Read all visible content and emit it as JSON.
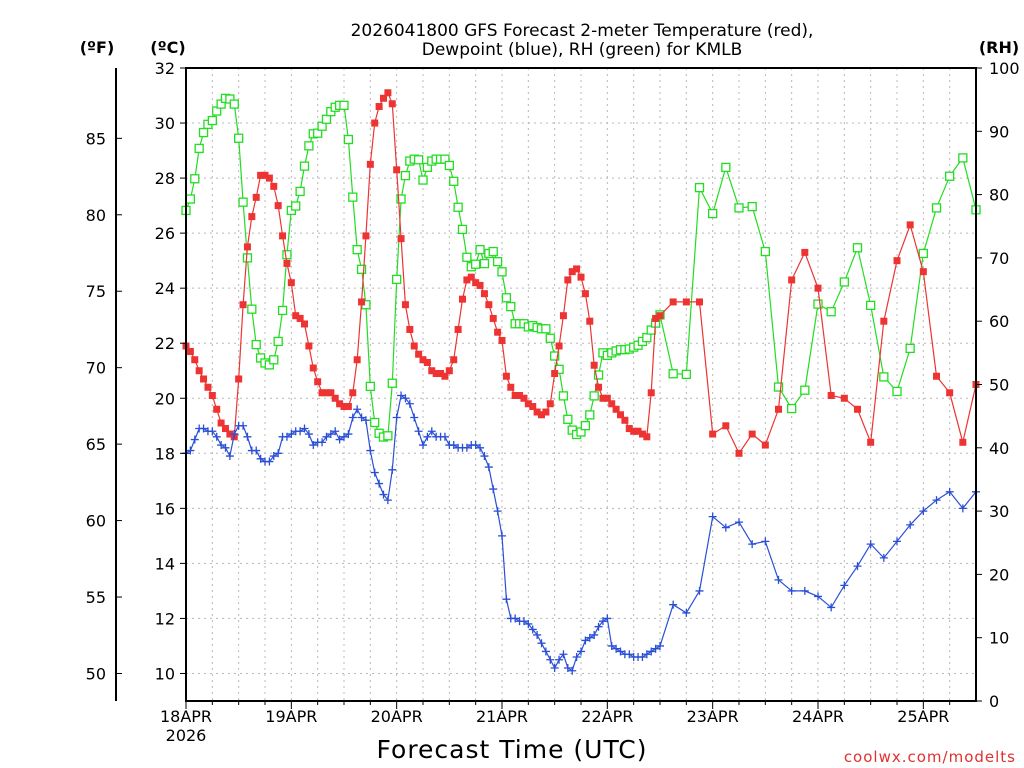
{
  "chart_data": {
    "type": "line",
    "title_line1": "2026041800 GFS Forecast 2-meter Temperature (red),",
    "title_line2": "Dewpoint (blue), RH (green) for KMLB",
    "left_outer_label": "(ºF)",
    "left_inner_label": "(ºC)",
    "right_label": "(RH)",
    "xlabel": "Forecast Time (UTC)",
    "credit": "coolwx.com/modelts",
    "x_unit": "hours from 2026041800",
    "xlim": [
      0,
      180
    ],
    "x_ticks": [
      {
        "hour": 0,
        "label": "18APR",
        "sublabel": "2026"
      },
      {
        "hour": 24,
        "label": "19APR",
        "sublabel": ""
      },
      {
        "hour": 48,
        "label": "20APR",
        "sublabel": ""
      },
      {
        "hour": 72,
        "label": "21APR",
        "sublabel": ""
      },
      {
        "hour": 96,
        "label": "22APR",
        "sublabel": ""
      },
      {
        "hour": 120,
        "label": "23APR",
        "sublabel": ""
      },
      {
        "hour": 144,
        "label": "24APR",
        "sublabel": ""
      },
      {
        "hour": 168,
        "label": "25APR",
        "sublabel": ""
      }
    ],
    "celsius_axis": {
      "ylim": [
        9,
        32
      ],
      "ticks": [
        10,
        12,
        14,
        16,
        18,
        20,
        22,
        24,
        26,
        28,
        30,
        32
      ]
    },
    "fahrenheit_axis": {
      "ticks": [
        50,
        55,
        60,
        65,
        70,
        75,
        80,
        85
      ]
    },
    "rh_axis": {
      "ylim": [
        0,
        100
      ],
      "ticks": [
        0,
        10,
        20,
        30,
        40,
        50,
        60,
        70,
        80,
        90,
        100
      ]
    },
    "series": [
      {
        "name": "Temperature",
        "unit": "°C",
        "axis": "celsius",
        "color": "#ee3333",
        "marker": "filled-square",
        "x": [
          0,
          1,
          2,
          3,
          4,
          5,
          6,
          7,
          8,
          9,
          10,
          11,
          12,
          13,
          14,
          15,
          16,
          17,
          18,
          19,
          20,
          21,
          22,
          23,
          24,
          25,
          26,
          27,
          28,
          29,
          30,
          31,
          32,
          33,
          34,
          35,
          36,
          37,
          38,
          39,
          40,
          41,
          42,
          43,
          44,
          45,
          46,
          47,
          48,
          49,
          50,
          51,
          52,
          53,
          54,
          55,
          56,
          57,
          58,
          59,
          60,
          61,
          62,
          63,
          64,
          65,
          66,
          67,
          68,
          69,
          70,
          71,
          72,
          73,
          74,
          75,
          76,
          77,
          78,
          79,
          80,
          81,
          82,
          83,
          84,
          85,
          86,
          87,
          88,
          89,
          90,
          91,
          92,
          93,
          94,
          95,
          96,
          97,
          98,
          99,
          100,
          101,
          102,
          103,
          104,
          105,
          106,
          107,
          108,
          111,
          114,
          117,
          120,
          123,
          126,
          129,
          132,
          135,
          138,
          141,
          144,
          147,
          150,
          153,
          156,
          159,
          162,
          165,
          168,
          171,
          174,
          177,
          180
        ],
        "y": [
          21.9,
          21.7,
          21.4,
          21.0,
          20.7,
          20.4,
          20.1,
          19.6,
          19.1,
          18.9,
          18.7,
          18.6,
          20.7,
          23.4,
          25.5,
          26.6,
          27.3,
          28.1,
          28.1,
          28.0,
          27.7,
          27.0,
          25.9,
          24.9,
          24.2,
          23.0,
          22.9,
          22.7,
          21.9,
          21.1,
          20.6,
          20.2,
          20.2,
          20.2,
          20.0,
          19.8,
          19.7,
          19.7,
          20.2,
          21.4,
          23.5,
          25.9,
          28.5,
          30.0,
          30.6,
          30.9,
          31.1,
          30.7,
          28.3,
          25.8,
          23.4,
          22.5,
          21.9,
          21.6,
          21.4,
          21.3,
          21.0,
          20.9,
          20.9,
          20.8,
          21.0,
          21.4,
          22.5,
          23.6,
          24.3,
          24.4,
          24.2,
          24.1,
          23.8,
          23.4,
          22.9,
          22.4,
          22.1,
          20.8,
          20.4,
          20.1,
          20.1,
          20.0,
          19.8,
          19.7,
          19.5,
          19.4,
          19.5,
          19.8,
          20.9,
          21.9,
          23.0,
          24.3,
          24.6,
          24.7,
          24.4,
          23.8,
          22.8,
          21.2,
          20.4,
          20.0,
          20.0,
          19.8,
          19.6,
          19.4,
          19.2,
          18.9,
          18.8,
          18.8,
          18.7,
          18.6,
          20.2,
          22.9,
          23.0,
          23.5,
          23.5,
          23.5,
          18.7,
          19.0,
          18.0,
          18.7,
          18.3,
          19.6,
          24.3,
          25.3,
          24.0,
          20.1,
          20.0,
          19.6,
          18.4,
          22.8,
          25.0,
          26.3,
          24.6,
          20.8,
          20.2,
          18.4,
          20.5
        ]
      },
      {
        "name": "Dewpoint",
        "unit": "°C",
        "axis": "celsius",
        "color": "#2a4fd6",
        "marker": "plus",
        "x": [
          0,
          1,
          2,
          3,
          4,
          5,
          6,
          7,
          8,
          9,
          10,
          11,
          12,
          13,
          14,
          15,
          16,
          17,
          18,
          19,
          20,
          21,
          22,
          23,
          24,
          25,
          26,
          27,
          28,
          29,
          30,
          31,
          32,
          33,
          34,
          35,
          36,
          37,
          38,
          39,
          40,
          41,
          42,
          43,
          44,
          45,
          46,
          47,
          48,
          49,
          50,
          51,
          52,
          53,
          54,
          55,
          56,
          57,
          58,
          59,
          60,
          61,
          62,
          63,
          64,
          65,
          66,
          67,
          68,
          69,
          70,
          71,
          72,
          73,
          74,
          75,
          76,
          77,
          78,
          79,
          80,
          81,
          82,
          83,
          84,
          85,
          86,
          87,
          88,
          89,
          90,
          91,
          92,
          93,
          94,
          95,
          96,
          97,
          98,
          99,
          100,
          101,
          102,
          103,
          104,
          105,
          106,
          107,
          108,
          111,
          114,
          117,
          120,
          123,
          126,
          129,
          132,
          135,
          138,
          141,
          144,
          147,
          150,
          153,
          156,
          159,
          162,
          165,
          168,
          171,
          174,
          177,
          180
        ],
        "y": [
          18.0,
          18.1,
          18.5,
          18.9,
          18.9,
          18.8,
          18.8,
          18.6,
          18.3,
          18.2,
          17.9,
          18.7,
          19.0,
          19.0,
          18.6,
          18.1,
          18.1,
          17.8,
          17.7,
          17.7,
          17.9,
          18.0,
          18.6,
          18.6,
          18.7,
          18.8,
          18.8,
          18.9,
          18.7,
          18.3,
          18.4,
          18.4,
          18.6,
          18.7,
          18.8,
          18.5,
          18.6,
          18.7,
          19.3,
          19.6,
          19.3,
          19.2,
          18.1,
          17.3,
          16.9,
          16.5,
          16.3,
          17.4,
          19.3,
          20.1,
          20.0,
          19.8,
          19.3,
          18.8,
          18.3,
          18.6,
          18.8,
          18.6,
          18.6,
          18.6,
          18.3,
          18.3,
          18.2,
          18.2,
          18.2,
          18.3,
          18.3,
          18.2,
          17.9,
          17.5,
          16.7,
          15.9,
          15.0,
          12.7,
          12.0,
          12.0,
          11.9,
          11.9,
          11.8,
          11.6,
          11.4,
          11.1,
          10.8,
          10.5,
          10.2,
          10.5,
          10.7,
          10.2,
          10.1,
          10.6,
          10.8,
          11.2,
          11.3,
          11.4,
          11.7,
          11.9,
          12.0,
          11.0,
          10.9,
          10.8,
          10.7,
          10.7,
          10.6,
          10.6,
          10.6,
          10.7,
          10.8,
          10.9,
          11.0,
          12.5,
          12.2,
          13.0,
          15.7,
          15.3,
          15.5,
          14.7,
          14.8,
          13.4,
          13.0,
          13.0,
          12.8,
          12.4,
          13.2,
          13.9,
          14.7,
          14.2,
          14.8,
          15.4,
          15.9,
          16.3,
          16.6,
          16.0,
          16.6
        ]
      },
      {
        "name": "Relative Humidity",
        "unit": "%",
        "axis": "rh",
        "color": "#22dd22",
        "marker": "open-square",
        "x": [
          0,
          1,
          2,
          3,
          4,
          5,
          6,
          7,
          8,
          9,
          10,
          11,
          12,
          13,
          14,
          15,
          16,
          17,
          18,
          19,
          20,
          21,
          22,
          23,
          24,
          25,
          26,
          27,
          28,
          29,
          30,
          31,
          32,
          33,
          34,
          35,
          36,
          37,
          38,
          39,
          40,
          41,
          42,
          43,
          44,
          45,
          46,
          47,
          48,
          49,
          50,
          51,
          52,
          53,
          54,
          55,
          56,
          57,
          58,
          59,
          60,
          61,
          62,
          63,
          64,
          65,
          66,
          67,
          68,
          69,
          70,
          71,
          72,
          73,
          74,
          75,
          76,
          77,
          78,
          79,
          80,
          81,
          82,
          83,
          84,
          85,
          86,
          87,
          88,
          89,
          90,
          91,
          92,
          93,
          94,
          95,
          96,
          97,
          98,
          99,
          100,
          101,
          102,
          103,
          104,
          105,
          106,
          107,
          108,
          111,
          114,
          117,
          120,
          123,
          126,
          129,
          132,
          135,
          138,
          141,
          144,
          147,
          150,
          153,
          156,
          159,
          162,
          165,
          168,
          171,
          174,
          177,
          180
        ],
        "y": [
          77.5,
          79.3,
          82.5,
          87.3,
          89.8,
          91.1,
          91.7,
          93.2,
          94.3,
          95.2,
          95.1,
          94.3,
          88.9,
          78.8,
          70.0,
          61.9,
          56.3,
          54.2,
          53.4,
          53.1,
          53.9,
          56.8,
          61.7,
          70.5,
          77.5,
          78.2,
          80.5,
          84.5,
          87.7,
          89.6,
          89.7,
          90.8,
          91.9,
          93.1,
          93.8,
          94.1,
          94.1,
          88.7,
          79.6,
          71.3,
          68.2,
          62.6,
          49.7,
          44.0,
          42.3,
          41.7,
          41.9,
          50.2,
          66.6,
          79.3,
          83.0,
          85.3,
          85.6,
          85.5,
          82.3,
          84.3,
          85.3,
          85.6,
          85.6,
          85.6,
          84.6,
          82.1,
          78.0,
          74.5,
          70.1,
          68.6,
          69.0,
          71.3,
          69.1,
          70.7,
          71.0,
          69.4,
          67.8,
          63.7,
          62.3,
          59.6,
          59.6,
          59.6,
          59.1,
          59.3,
          59.0,
          58.8,
          58.8,
          57.3,
          54.5,
          52.4,
          48.2,
          44.5,
          42.8,
          42.1,
          42.5,
          43.5,
          45.2,
          48.2,
          51.5,
          55.0,
          54.6,
          55.0,
          55.3,
          55.5,
          55.5,
          55.6,
          55.9,
          56.2,
          56.8,
          57.4,
          58.6,
          59.7,
          61.0,
          51.7,
          51.6,
          81.1,
          77.0,
          84.3,
          77.9,
          78.1,
          71.0,
          49.6,
          46.2,
          49.1,
          62.7,
          61.5,
          66.2,
          71.6,
          62.5,
          51.2,
          48.9,
          55.7,
          70.7,
          77.9,
          82.9,
          85.8,
          77.6
        ]
      }
    ]
  }
}
